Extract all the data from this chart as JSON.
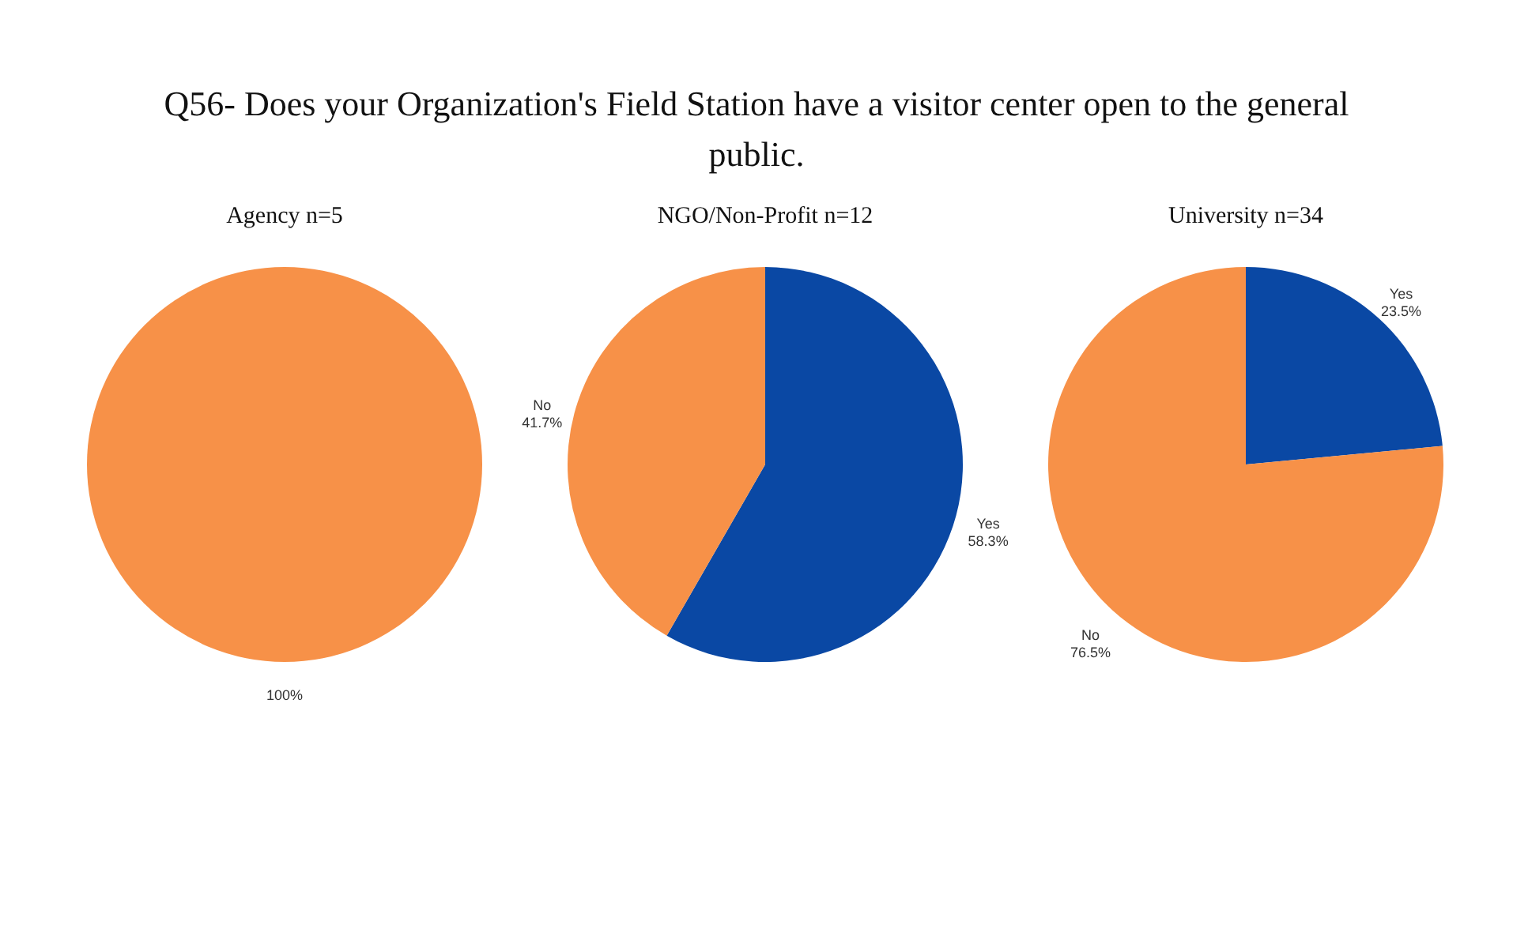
{
  "chart_data": [
    {
      "type": "pie",
      "title": "Q56- Does your Organization's Field Station have a visitor center open to the general public.",
      "subtitle": "Agency  n=5",
      "categories": [
        null
      ],
      "values": [
        100
      ],
      "colors": [
        "#f79148"
      ],
      "value_labels": [
        "100%"
      ],
      "legend": false
    },
    {
      "type": "pie",
      "subtitle": "NGO/Non-Profit n=12",
      "categories": [
        "Yes",
        "No"
      ],
      "values": [
        58.3,
        41.7
      ],
      "colors": [
        "#0a48a4",
        "#f79148"
      ],
      "value_labels": [
        "58.3%",
        "41.7%"
      ],
      "legend": false
    },
    {
      "type": "pie",
      "subtitle": "University  n=34",
      "categories": [
        "Yes",
        "No"
      ],
      "values": [
        23.5,
        76.5
      ],
      "colors": [
        "#0a48a4",
        "#f79148"
      ],
      "value_labels": [
        "23.5%",
        "76.5%"
      ],
      "legend": false
    }
  ]
}
